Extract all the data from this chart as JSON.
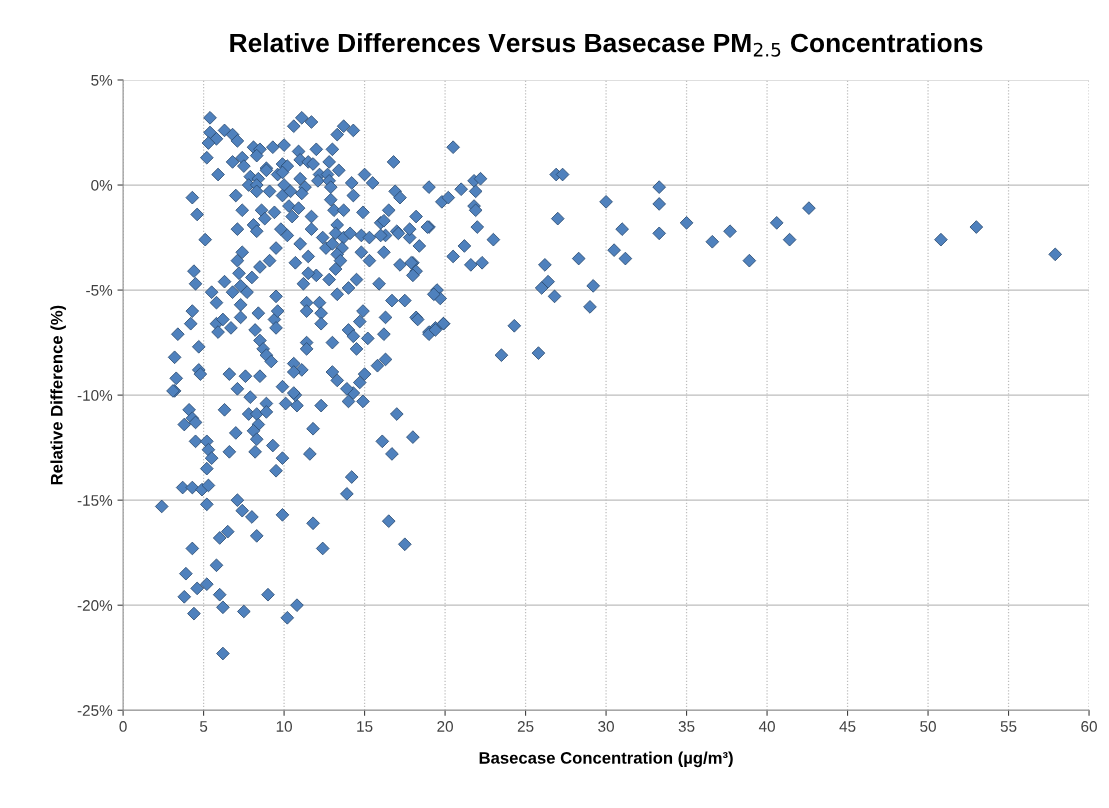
{
  "chart_data": {
    "type": "scatter",
    "title": "Relative Differences Versus Basecase PM$_{2.5}$ Concentrations",
    "xlabel": "Basecase Concentration (µg/m³)",
    "ylabel": "Relative Difference (%)",
    "marker": "diamond",
    "grid": true,
    "xlim": [
      0,
      60
    ],
    "xticks": [
      0,
      5,
      10,
      15,
      20,
      25,
      30,
      35,
      40,
      45,
      50,
      55,
      60
    ],
    "ylim": [
      -25,
      5
    ],
    "yticks": [
      {
        "value": -25,
        "label": "-25%"
      },
      {
        "value": -20,
        "label": "-20%"
      },
      {
        "value": -15,
        "label": "-15%"
      },
      {
        "value": -10,
        "label": "-10%"
      },
      {
        "value": -5,
        "label": "-5%"
      },
      {
        "value": 0,
        "label": "0%"
      },
      {
        "value": 5,
        "label": "5%"
      }
    ],
    "series": [
      {
        "color": "#4f81bd",
        "x": [
          20.5,
          21,
          19,
          19.8,
          20.2,
          21.8,
          22.2,
          21.9,
          21.8,
          21.9,
          22,
          21.2,
          20.5,
          21.6,
          22.3,
          23,
          19,
          18.2,
          17.8,
          18,
          18.2,
          19.5,
          19.7,
          19.3,
          19.9,
          19.4,
          19,
          18.2,
          17.5,
          17.2,
          17,
          16.8,
          16.9,
          17.2,
          16.5,
          16,
          16.3,
          24.3,
          23.5,
          25.8,
          26,
          26.2,
          26.4,
          26.8,
          26.9,
          27.3,
          27,
          28.3,
          29.2,
          29,
          30,
          30.5,
          31,
          31.2,
          33.3,
          33.3,
          33.3,
          35,
          36.6,
          37.7,
          38.9,
          40.6,
          41.4,
          42.6,
          50.8,
          53,
          57.9,
          17,
          16.1,
          18,
          16.7,
          14.2,
          13.9,
          16.5,
          17.5,
          3.2,
          4.1,
          4.3,
          3.8,
          4.5,
          4.5,
          5.2,
          5.3,
          5.5,
          5.2,
          3.7,
          4.3,
          4.9,
          5.3,
          2.4,
          5.2,
          7.1,
          7.4,
          8.0,
          9.9,
          11.8,
          12.4,
          6.5,
          6.0,
          8.3,
          4.3,
          5.8,
          3.9,
          4.6,
          5.2,
          3.8,
          6.0,
          9.0,
          10.8,
          4.4,
          6.2,
          7.5,
          10.2,
          6.2,
          6.3,
          7.8,
          8.3,
          8.9,
          8.9,
          8.4,
          7.0,
          8.1,
          8.3,
          9.3,
          6.6,
          8.2,
          9.9,
          9.5,
          11.6,
          11.8,
          12.3,
          10.1,
          10.8,
          10.7,
          14.0,
          14.9,
          14.3,
          13.9,
          7.9,
          7.1,
          9.9,
          5.4,
          10.6,
          11.1,
          11.7,
          13.7,
          14.3,
          13.3,
          5.4,
          5.8,
          5.3,
          6.3,
          6.8,
          7.1,
          8.1,
          8.5,
          9.3,
          10.0,
          10.9,
          12.0,
          13.0,
          5.2,
          6.8,
          7.4,
          7.5,
          8.3,
          8.9,
          9.9,
          10.2,
          11.0,
          11.5,
          11.8,
          12.8,
          13.4,
          5.9,
          7.9,
          8.4,
          8.9,
          9.6,
          9.9,
          12.2,
          12.7,
          15.0,
          7.8,
          8.3,
          10.0,
          11.0,
          11.3,
          12.1,
          12.8,
          14.2,
          15.5,
          4.3,
          4.6,
          5.1,
          7.0,
          8.3,
          9.1,
          9.9,
          10.4,
          11.1,
          12.9,
          14.3,
          7.4,
          8.6,
          9.4,
          10.3,
          10.9,
          12.9,
          13.1,
          13.7,
          14.9,
          7.1,
          8.1,
          8.3,
          8.8,
          9.8,
          10.2,
          10.5,
          11.7,
          11.7,
          11.0,
          12.4,
          12.6,
          13.3,
          13.2,
          13.0,
          13.7,
          13.6,
          13.3,
          13.5,
          13.2,
          14.1,
          14.8,
          15.3,
          16.0,
          14.8,
          15.3,
          16.2,
          17.1,
          17.8,
          18.4,
          18.9,
          16.2,
          17.9,
          18.0,
          15.9,
          16.7,
          14.5,
          14.0,
          13.3,
          12.8,
          12.0,
          11.5,
          11.5,
          10.7,
          11.2,
          9.5,
          9.1,
          8.5,
          8.0,
          7.2,
          7.4,
          7.1,
          4.4,
          4.5,
          5.5,
          6.3,
          6.8,
          7.7,
          7.3,
          5.8,
          7.3,
          9.5,
          11.4,
          12.2,
          4.3,
          4.2,
          3.4,
          4.7,
          3.2,
          3.3,
          3.1,
          4.7,
          4.8,
          5.8,
          6.2,
          6.7,
          5.9,
          7.3,
          8.4,
          8.2,
          8.5,
          8.7,
          8.9,
          9.2,
          9.4,
          9.5,
          9.6,
          11.4,
          11.4,
          11.4,
          12.3,
          12.3,
          13.0,
          14.0,
          14.3,
          14.5,
          14.7,
          14.9,
          15.2,
          16.3,
          16.2,
          18.3,
          19.0,
          19.4,
          19.9,
          16.3,
          15.8,
          15.0,
          14.7,
          13.3,
          13.0,
          11.1,
          10.6,
          10.6,
          10.6,
          8.5,
          7.6,
          6.6
        ],
        "values": [
          1.8,
          -0.2,
          -0.1,
          -0.8,
          -0.6,
          0.2,
          0.3,
          -0.3,
          -1.0,
          -1.2,
          -2.0,
          -2.9,
          -3.4,
          -3.8,
          -3.7,
          -2.6,
          -2.0,
          -1.5,
          -2.5,
          -3.7,
          -4.1,
          -5.0,
          -5.4,
          -5.2,
          -6.6,
          -6.8,
          -7.0,
          -6.3,
          -5.5,
          -3.8,
          -2.2,
          1.1,
          -0.3,
          -0.6,
          -1.2,
          -1.8,
          -2.4,
          -6.7,
          -8.1,
          -8.0,
          -4.9,
          -3.8,
          -4.6,
          -5.3,
          0.5,
          0.5,
          -1.6,
          -3.5,
          -4.8,
          -5.8,
          -0.8,
          -3.1,
          -2.1,
          -3.5,
          -0.1,
          -0.9,
          -2.3,
          -1.8,
          -2.7,
          -2.2,
          -3.6,
          -1.8,
          -2.6,
          -1.1,
          -2.6,
          -2.0,
          -3.3,
          -10.9,
          -12.2,
          -12.0,
          -12.8,
          -13.9,
          -14.7,
          -16.0,
          -17.1,
          -9.8,
          -10.7,
          -11.1,
          -11.4,
          -11.3,
          -12.2,
          -12.2,
          -12.6,
          -13.0,
          -13.5,
          -14.4,
          -14.4,
          -14.5,
          -14.3,
          -15.3,
          -15.2,
          -15.0,
          -15.5,
          -15.8,
          -15.7,
          -16.1,
          -17.3,
          -16.5,
          -16.8,
          -16.7,
          -17.3,
          -18.1,
          -18.5,
          -19.2,
          -19.0,
          -19.6,
          -19.5,
          -19.5,
          -20.0,
          -20.4,
          -20.1,
          -20.3,
          -20.6,
          -22.3,
          -10.7,
          -10.9,
          -10.9,
          -10.4,
          -10.8,
          -11.4,
          -11.8,
          -11.7,
          -12.1,
          -12.4,
          -12.7,
          -12.7,
          -13.0,
          -13.6,
          -12.8,
          -11.6,
          -10.5,
          -10.4,
          -10.5,
          -10.0,
          -10.3,
          -10.3,
          -9.9,
          -9.7,
          -10.1,
          -9.7,
          -9.6,
          3.2,
          2.8,
          3.2,
          3.0,
          2.8,
          2.6,
          2.4,
          2.5,
          2.2,
          2.0,
          2.6,
          2.4,
          2.1,
          1.8,
          1.7,
          1.8,
          1.9,
          1.6,
          1.7,
          1.7,
          1.3,
          1.1,
          1.3,
          0.9,
          1.4,
          0.8,
          1.0,
          0.9,
          1.2,
          1.1,
          1.0,
          1.1,
          0.7,
          0.5,
          0.4,
          0.3,
          0.7,
          0.5,
          0.6,
          0.5,
          0.5,
          0.5,
          0.0,
          0.0,
          0.0,
          0.3,
          -0.1,
          0.2,
          0.2,
          0.1,
          0.1,
          -0.6,
          -1.4,
          -2.6,
          -0.5,
          -0.3,
          -0.3,
          -0.5,
          -0.3,
          -0.4,
          -0.1,
          -0.5,
          -1.2,
          -1.2,
          -1.3,
          -1.0,
          -1.1,
          -0.7,
          -1.2,
          -1.2,
          -1.3,
          -2.1,
          -1.9,
          -2.2,
          -1.6,
          -2.1,
          -2.4,
          -1.5,
          -1.5,
          -2.1,
          -2.8,
          -2.5,
          -3.0,
          -1.9,
          -2.3,
          -2.8,
          -2.5,
          -3.0,
          -3.3,
          -3.6,
          -4.0,
          -2.3,
          -2.4,
          -2.5,
          -2.4,
          -3.2,
          -3.6,
          -1.7,
          -2.3,
          -2.1,
          -2.9,
          -2.0,
          -3.2,
          -3.7,
          -4.3,
          -4.7,
          -5.5,
          -4.5,
          -4.9,
          -5.2,
          -4.5,
          -4.3,
          -4.2,
          -3.4,
          -3.7,
          -4.7,
          -3.0,
          -3.6,
          -3.9,
          -4.4,
          -4.2,
          -3.2,
          -3.6,
          -4.1,
          -4.7,
          -5.1,
          -4.6,
          -5.1,
          -5.1,
          -4.8,
          -5.6,
          -5.7,
          -5.3,
          -5.6,
          -5.6,
          -6.0,
          -6.6,
          -7.1,
          -7.7,
          -8.2,
          -9.2,
          -9.8,
          -8.8,
          -9.0,
          -6.6,
          -6.4,
          -6.8,
          -7.0,
          -6.3,
          -6.1,
          -6.9,
          -7.4,
          -7.8,
          -8.1,
          -8.4,
          -6.4,
          -6.8,
          -6.0,
          -7.5,
          -7.8,
          -6.0,
          -6.1,
          -6.6,
          -7.5,
          -6.9,
          -7.2,
          -7.8,
          -6.5,
          -6.0,
          -7.3,
          -6.3,
          -7.1,
          -6.4,
          -7.1,
          -6.9,
          -6.6,
          -8.3,
          -8.6,
          -9.0,
          -9.4,
          -9.3,
          -8.9,
          -8.8,
          -8.5,
          -8.9,
          -9.9,
          -9.1,
          -9.1,
          -9.0
        ]
      }
    ]
  }
}
